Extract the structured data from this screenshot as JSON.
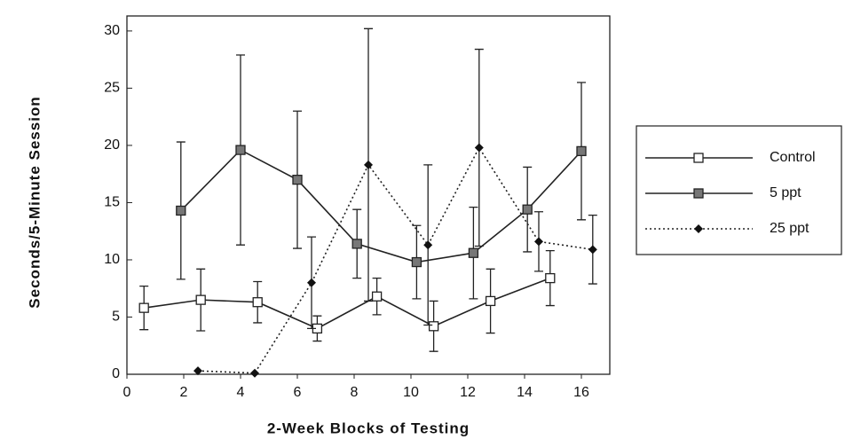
{
  "chart_data": {
    "type": "line",
    "xlabel": "2-Week  Blocks  of  Testing",
    "ylabel": "Seconds/5-Minute  Session",
    "xlim": [
      0,
      17
    ],
    "xticks": [
      0,
      2,
      4,
      6,
      8,
      10,
      12,
      14,
      16
    ],
    "ylim": [
      0,
      31
    ],
    "yticks": [
      0,
      5,
      10,
      15,
      20,
      25,
      30
    ],
    "legend": "right",
    "series": [
      {
        "name": "Control",
        "color": "#222",
        "marker": "open-square",
        "dash": false,
        "x": [
          0.6,
          2.6,
          4.6,
          6.7,
          8.8,
          10.8,
          12.8,
          14.9
        ],
        "values": [
          5.8,
          6.5,
          6.3,
          4.0,
          6.8,
          4.2,
          6.4,
          8.4
        ],
        "errors": [
          1.9,
          2.7,
          1.8,
          1.1,
          1.6,
          2.2,
          2.8,
          2.4
        ]
      },
      {
        "name": "5 ppt",
        "color": "#222",
        "marker": "filled-square",
        "dash": false,
        "x": [
          1.9,
          4.0,
          6.0,
          8.1,
          10.2,
          12.2,
          14.1,
          16.0
        ],
        "values": [
          14.3,
          19.6,
          17.0,
          11.4,
          9.8,
          10.6,
          14.4,
          19.5
        ],
        "errors": [
          6.0,
          8.3,
          6.0,
          3.0,
          3.2,
          4.0,
          3.7,
          6.0
        ]
      },
      {
        "name": "25 ppt",
        "color": "#222",
        "marker": "diamond",
        "dash": true,
        "x": [
          2.5,
          4.5,
          6.5,
          8.5,
          10.6,
          12.4,
          14.5,
          16.4
        ],
        "values": [
          0.3,
          0.1,
          8.0,
          18.3,
          11.3,
          19.8,
          11.6,
          10.9
        ],
        "errors": [
          null,
          null,
          4.0,
          11.9,
          7.0,
          8.6,
          2.6,
          3.0
        ]
      }
    ]
  }
}
